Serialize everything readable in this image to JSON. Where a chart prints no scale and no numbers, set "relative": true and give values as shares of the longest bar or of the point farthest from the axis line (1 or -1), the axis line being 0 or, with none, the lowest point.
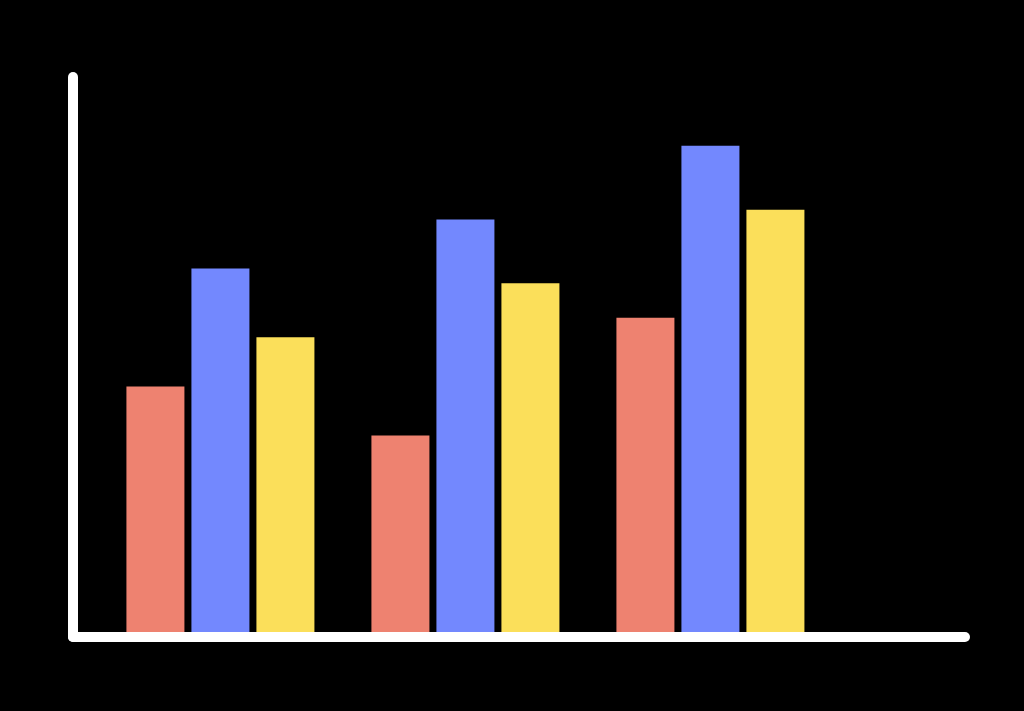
{
  "chart_data": {
    "type": "bar",
    "relative": true,
    "categories": [
      null,
      null,
      null
    ],
    "series": [
      {
        "color": "#ee8270",
        "values": [
          0.51,
          0.41,
          0.65
        ]
      },
      {
        "color": "#7388fe",
        "values": [
          0.75,
          0.85,
          1
        ]
      },
      {
        "color": "#fbdf5a",
        "values": [
          0.61,
          0.72,
          0.87
        ]
      }
    ]
  }
}
